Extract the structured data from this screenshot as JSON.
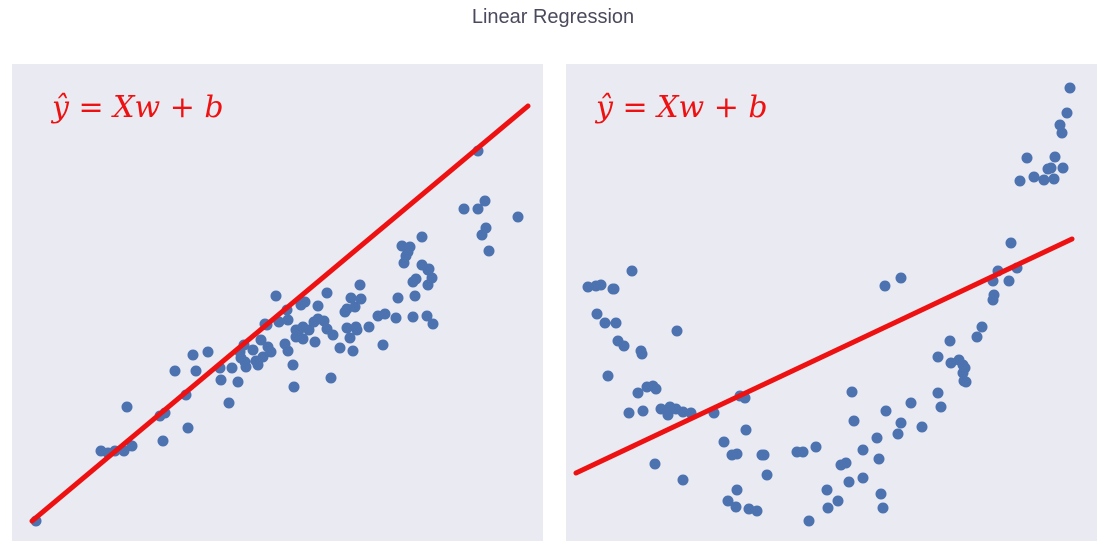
{
  "title": "Linear Regression",
  "colors": {
    "background": "#eaeaf2",
    "points": "#4c72b0",
    "fit_line": "#ee1111"
  },
  "chart_data": [
    {
      "type": "scatter",
      "title": "",
      "annotation": "ŷ = Xw + b",
      "grid": false,
      "xlim": [
        0,
        531
      ],
      "ylim": [
        0,
        477
      ],
      "line": {
        "x": [
          20,
          516
        ],
        "y": [
          20,
          435
        ]
      },
      "points": [
        [
          24,
          20
        ],
        [
          89,
          90
        ],
        [
          96,
          88
        ],
        [
          103,
          90
        ],
        [
          112,
          90
        ],
        [
          115,
          134
        ],
        [
          120,
          95
        ],
        [
          148,
          125
        ],
        [
          153,
          128
        ],
        [
          151,
          100
        ],
        [
          163,
          170
        ],
        [
          174,
          146
        ],
        [
          176,
          113
        ],
        [
          181,
          186
        ],
        [
          196,
          189
        ],
        [
          184,
          170
        ],
        [
          208,
          173
        ],
        [
          217,
          138
        ],
        [
          209,
          161
        ],
        [
          220,
          173
        ],
        [
          229,
          183
        ],
        [
          226,
          159
        ],
        [
          233,
          179
        ],
        [
          228,
          189
        ],
        [
          234,
          174
        ],
        [
          232,
          196
        ],
        [
          244,
          180
        ],
        [
          241,
          191
        ],
        [
          246,
          176
        ],
        [
          251,
          184
        ],
        [
          249,
          201
        ],
        [
          253,
          217
        ],
        [
          255,
          216
        ],
        [
          259,
          189
        ],
        [
          256,
          194
        ],
        [
          264,
          245
        ],
        [
          267,
          219
        ],
        [
          275,
          231
        ],
        [
          276,
          221
        ],
        [
          282,
          154
        ],
        [
          276,
          190
        ],
        [
          273,
          197
        ],
        [
          281,
          176
        ],
        [
          284,
          211
        ],
        [
          284,
          204
        ],
        [
          287,
          211
        ],
        [
          291,
          214
        ],
        [
          291,
          202
        ],
        [
          293,
          239
        ],
        [
          289,
          236
        ],
        [
          297,
          211
        ],
        [
          302,
          219
        ],
        [
          306,
          235
        ],
        [
          303,
          199
        ],
        [
          312,
          220
        ],
        [
          306,
          222
        ],
        [
          315,
          248
        ],
        [
          315,
          212
        ],
        [
          319,
          163
        ],
        [
          321,
          206
        ],
        [
          328,
          193
        ],
        [
          335,
          213
        ],
        [
          333,
          229
        ],
        [
          338,
          203
        ],
        [
          335,
          232
        ],
        [
          341,
          190
        ],
        [
          344,
          214
        ],
        [
          343,
          234
        ],
        [
          349,
          242
        ],
        [
          339,
          243
        ],
        [
          348,
          256
        ],
        [
          345,
          211
        ],
        [
          357,
          214
        ],
        [
          366,
          225
        ],
        [
          373,
          227
        ],
        [
          384,
          223
        ],
        [
          371,
          196
        ],
        [
          386,
          243
        ],
        [
          390,
          295
        ],
        [
          392,
          278
        ],
        [
          394,
          285
        ],
        [
          398,
          294
        ],
        [
          410,
          304
        ],
        [
          396,
          289
        ],
        [
          404,
          262
        ],
        [
          401,
          259
        ],
        [
          416,
          271
        ],
        [
          403,
          245
        ],
        [
          410,
          276
        ],
        [
          417,
          272
        ],
        [
          416,
          256
        ],
        [
          420,
          263
        ],
        [
          452,
          332
        ],
        [
          466,
          332
        ],
        [
          470,
          306
        ],
        [
          474,
          313
        ],
        [
          477,
          290
        ],
        [
          466,
          390
        ],
        [
          473,
          340
        ],
        [
          506,
          324
        ],
        [
          401,
          224
        ],
        [
          415,
          225
        ],
        [
          421,
          217
        ]
      ]
    },
    {
      "type": "scatter",
      "title": "",
      "annotation": "ŷ = Xw + b",
      "grid": false,
      "xlim": [
        0,
        531
      ],
      "ylim": [
        0,
        477
      ],
      "line": {
        "x": [
          10,
          506
        ],
        "y": [
          68,
          302
        ]
      },
      "points": [
        [
          22,
          254
        ],
        [
          30,
          255
        ],
        [
          35,
          256
        ],
        [
          48,
          252
        ],
        [
          66,
          270
        ],
        [
          47,
          252
        ],
        [
          31,
          227
        ],
        [
          39,
          218
        ],
        [
          50,
          218
        ],
        [
          52,
          200
        ],
        [
          58,
          195
        ],
        [
          75,
          190
        ],
        [
          76,
          187
        ],
        [
          42,
          165
        ],
        [
          63,
          128
        ],
        [
          72,
          148
        ],
        [
          81,
          154
        ],
        [
          87,
          155
        ],
        [
          90,
          152
        ],
        [
          77,
          130
        ],
        [
          89,
          77
        ],
        [
          95,
          132
        ],
        [
          102,
          126
        ],
        [
          104,
          134
        ],
        [
          110,
          132
        ],
        [
          117,
          129
        ],
        [
          111,
          210
        ],
        [
          117,
          61
        ],
        [
          125,
          128
        ],
        [
          148,
          128
        ],
        [
          158,
          99
        ],
        [
          166,
          86
        ],
        [
          171,
          87
        ],
        [
          174,
          145
        ],
        [
          179,
          143
        ],
        [
          180,
          111
        ],
        [
          196,
          86
        ],
        [
          162,
          40
        ],
        [
          171,
          51
        ],
        [
          170,
          34
        ],
        [
          183,
          32
        ],
        [
          191,
          30
        ],
        [
          198,
          86
        ],
        [
          201,
          66
        ],
        [
          231,
          89
        ],
        [
          237,
          89
        ],
        [
          250,
          94
        ],
        [
          243,
          20
        ],
        [
          262,
          33
        ],
        [
          272,
          40
        ],
        [
          261,
          51
        ],
        [
          275,
          76
        ],
        [
          280,
          78
        ],
        [
          283,
          59
        ],
        [
          286,
          149
        ],
        [
          288,
          120
        ],
        [
          297,
          63
        ],
        [
          297,
          91
        ],
        [
          311,
          103
        ],
        [
          313,
          82
        ],
        [
          315,
          47
        ],
        [
          317,
          33
        ],
        [
          320,
          130
        ],
        [
          332,
          107
        ],
        [
          335,
          118
        ],
        [
          345,
          138
        ],
        [
          356,
          114
        ],
        [
          372,
          148
        ],
        [
          375,
          134
        ],
        [
          372,
          184
        ],
        [
          384,
          200
        ],
        [
          385,
          178
        ],
        [
          397,
          176
        ],
        [
          393,
          181
        ],
        [
          397,
          168
        ],
        [
          398,
          160
        ],
        [
          399,
          173
        ],
        [
          400,
          159
        ],
        [
          411,
          204
        ],
        [
          416,
          214
        ],
        [
          427,
          241
        ],
        [
          428,
          246
        ],
        [
          427,
          260
        ],
        [
          432,
          270
        ],
        [
          443,
          260
        ],
        [
          451,
          273
        ],
        [
          445,
          298
        ],
        [
          454,
          360
        ],
        [
          461,
          383
        ],
        [
          468,
          364
        ],
        [
          478,
          361
        ],
        [
          482,
          372
        ],
        [
          485,
          373
        ],
        [
          488,
          362
        ],
        [
          489,
          384
        ],
        [
          496,
          408
        ],
        [
          501,
          428
        ],
        [
          504,
          453
        ],
        [
          494,
          416
        ],
        [
          497,
          373
        ],
        [
          319,
          255
        ],
        [
          335,
          263
        ]
      ]
    }
  ]
}
